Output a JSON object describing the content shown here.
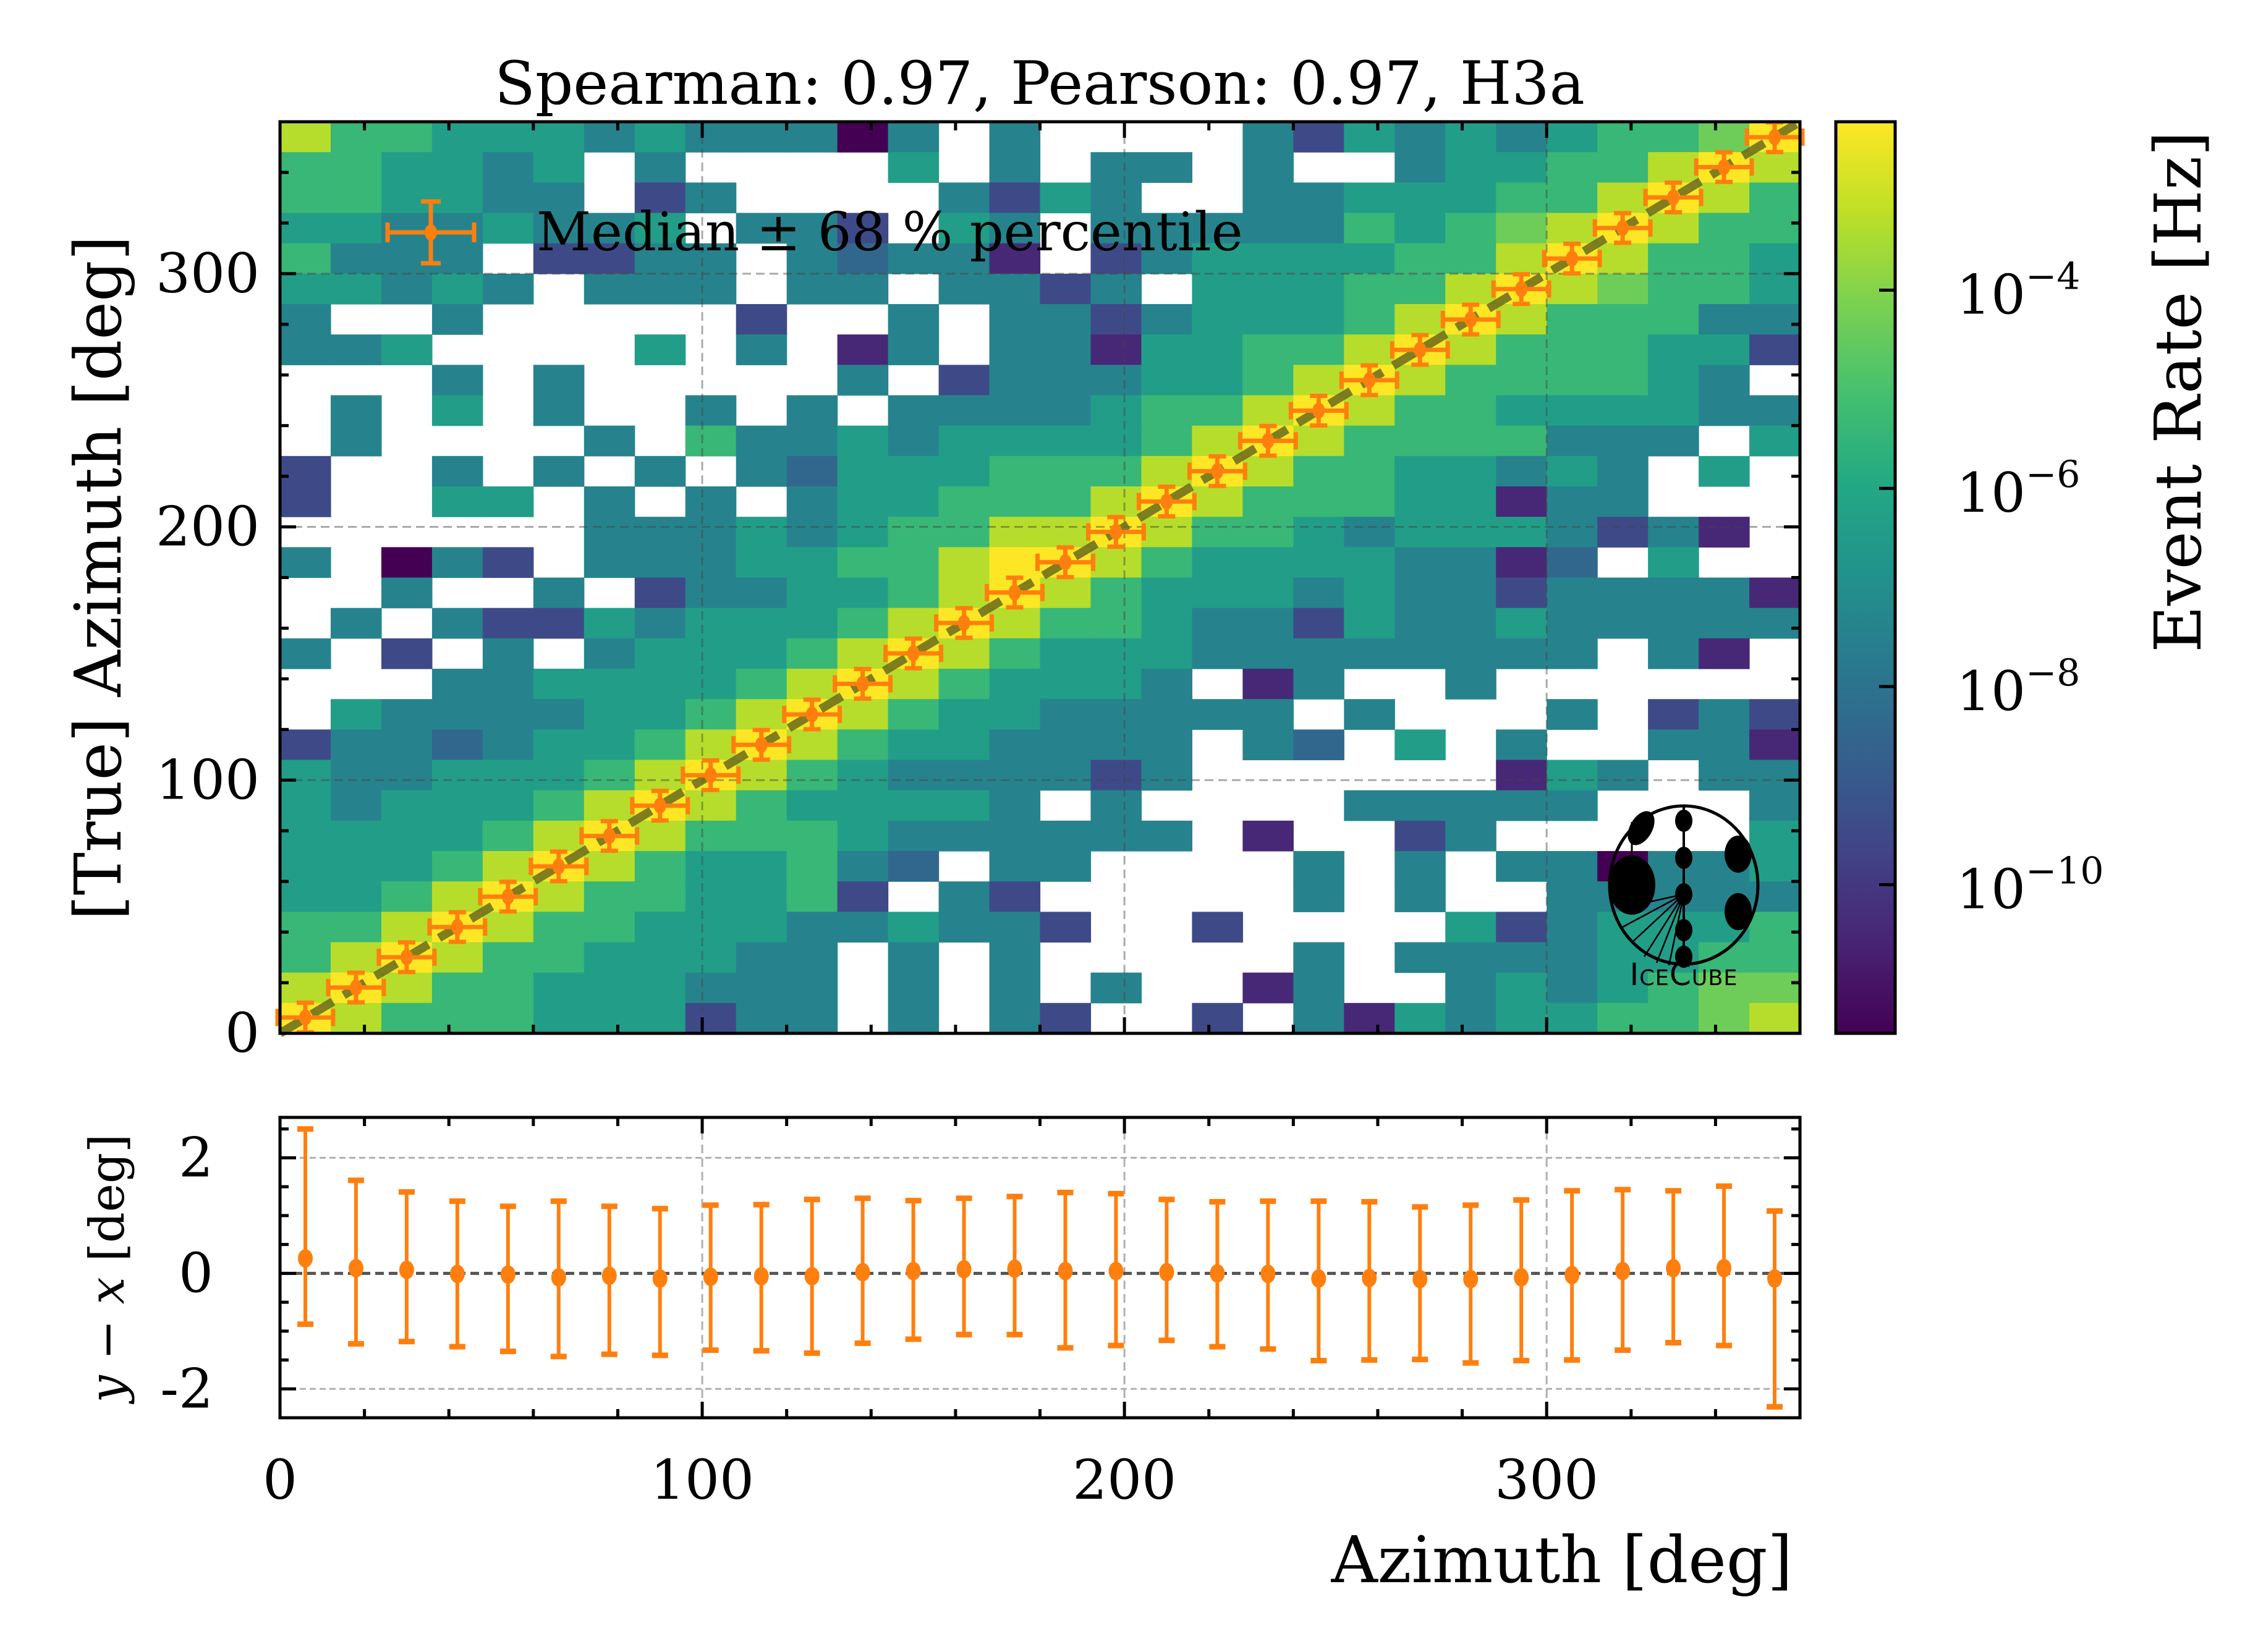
{
  "chart_data": [
    {
      "type": "heatmap",
      "title": "Spearman: 0.97, Pearson: 0.97, H3a",
      "xlabel": "Azimuth [deg]",
      "ylabel": "[True] Azimuth [deg]",
      "xlim": [
        0,
        360
      ],
      "ylim": [
        0,
        360
      ],
      "xticks": [
        "0",
        "100",
        "200",
        "300"
      ],
      "yticks": [
        "0",
        "100",
        "200",
        "300"
      ],
      "xtick_values": [
        0,
        100,
        200,
        300
      ],
      "ytick_values": [
        0,
        100,
        200,
        300
      ],
      "grid": true,
      "bins": 30,
      "color_scale": {
        "map": "viridis",
        "log10_min": -11.5,
        "log10_max": -2.3,
        "level_encoding": "digit 0-9 maps linearly from log10_min to log10_max; '.' = empty bin",
        "label": "Event Rate [Hz]",
        "ticks": [
          {
            "base": "10",
            "exp": "−4",
            "value": -4
          },
          {
            "base": "10",
            "exp": "−6",
            "value": -6
          },
          {
            "base": "10",
            "exp": "−8",
            "value": -8
          },
          {
            "base": "10",
            "exp": "−10",
            "value": -10
          }
        ]
      },
      "rows_top_to_bottom": [
        "8665554544404.4....42545456679",
        "665545.4....5.4.44.4..45566898",
        "665544.24....4254..44555668986",
        "55445445.442.54.44444656789866",
        "6444.2244.43441.24555566898665",
        "55454.444.44.4424.555668987665",
        "4..4.....2..4.4424555689866644",
        "445....5.4.14.4415566898666552",
        "...4.4.....4.2444556898666654.",
        ".4.5.4..4.4.444456689866555544",
        ".4....4.64454555568986666444.5",
        "2..4.4.4.435556668986655454.5.",
        "2..55.4.4.45566689866655144...",
        "......44454566889866545554241.",
        "4.042.44455668998655554413.5..",
        "..4..4.24455689865554544244441",
        ".4.422545556898665442544544444",
        "4.2.4.45556898655544444444.41.",
        "...445555689865554.14..4......",
        ".5444455689865544444.4...4.242",
        "244345568986554444.43.5.4..441",
        "544555689865444424......154.44",
        "545556898655554.4....44444...4",
        "555568986665444444.1..24.....5",
        "5556898655643.44....4.4.440445",
        "556898665562.42.....4.4..44444",
        "6689866555445442..2....5245556",
        "68986655544.4.4.....4.44445566",
        "89866555444.4.4.4..14..4545677",
        "98666555244.4.42..2.4154556678"
      ],
      "diagonal_line": "y = x",
      "legend": {
        "label": "Median ± 68 % percentile",
        "placement": "top-left"
      },
      "logo": "IceCube"
    },
    {
      "type": "scatter",
      "subtype": "errorbar",
      "xlabel": "Azimuth [deg]",
      "ylabel": "y − x [deg]",
      "xlim": [
        0,
        360
      ],
      "ylim": [
        -2.5,
        2.7
      ],
      "xticks": [
        "0",
        "100",
        "200",
        "300"
      ],
      "xtick_values": [
        0,
        100,
        200,
        300
      ],
      "yticks": [
        "2",
        "0",
        "-2"
      ],
      "ytick_values": [
        2,
        0,
        -2
      ],
      "grid": true,
      "x": [
        6,
        18,
        30,
        42,
        54,
        66,
        78,
        90,
        102,
        114,
        126,
        138,
        150,
        162,
        174,
        186,
        198,
        210,
        222,
        234,
        246,
        258,
        270,
        282,
        294,
        306,
        318,
        330,
        342,
        354
      ],
      "median": [
        0.26,
        0.09,
        0.06,
        -0.01,
        -0.02,
        -0.07,
        -0.04,
        -0.09,
        -0.06,
        -0.05,
        -0.05,
        0.02,
        0.04,
        0.07,
        0.08,
        0.04,
        0.04,
        0.02,
        0.0,
        -0.01,
        -0.09,
        -0.08,
        -0.1,
        -0.1,
        -0.07,
        -0.03,
        0.04,
        0.09,
        0.09,
        -0.09
      ],
      "upper": [
        2.5,
        1.61,
        1.41,
        1.25,
        1.16,
        1.25,
        1.16,
        1.12,
        1.18,
        1.19,
        1.28,
        1.3,
        1.26,
        1.3,
        1.33,
        1.4,
        1.38,
        1.28,
        1.24,
        1.25,
        1.25,
        1.24,
        1.15,
        1.18,
        1.27,
        1.43,
        1.45,
        1.43,
        1.51,
        1.08
      ],
      "lower": [
        -0.88,
        -1.22,
        -1.18,
        -1.27,
        -1.35,
        -1.44,
        -1.4,
        -1.42,
        -1.33,
        -1.34,
        -1.38,
        -1.21,
        -1.14,
        -1.06,
        -1.06,
        -1.29,
        -1.25,
        -1.16,
        -1.27,
        -1.31,
        -1.51,
        -1.5,
        -1.49,
        -1.55,
        -1.51,
        -1.5,
        -1.33,
        -1.2,
        -1.25,
        -2.31
      ],
      "series_color": "#ff7f0e"
    }
  ],
  "colors": {
    "marker": "#ff7f0e",
    "diagonal": "#6b6b1e",
    "grid": "#b0b0b0"
  }
}
